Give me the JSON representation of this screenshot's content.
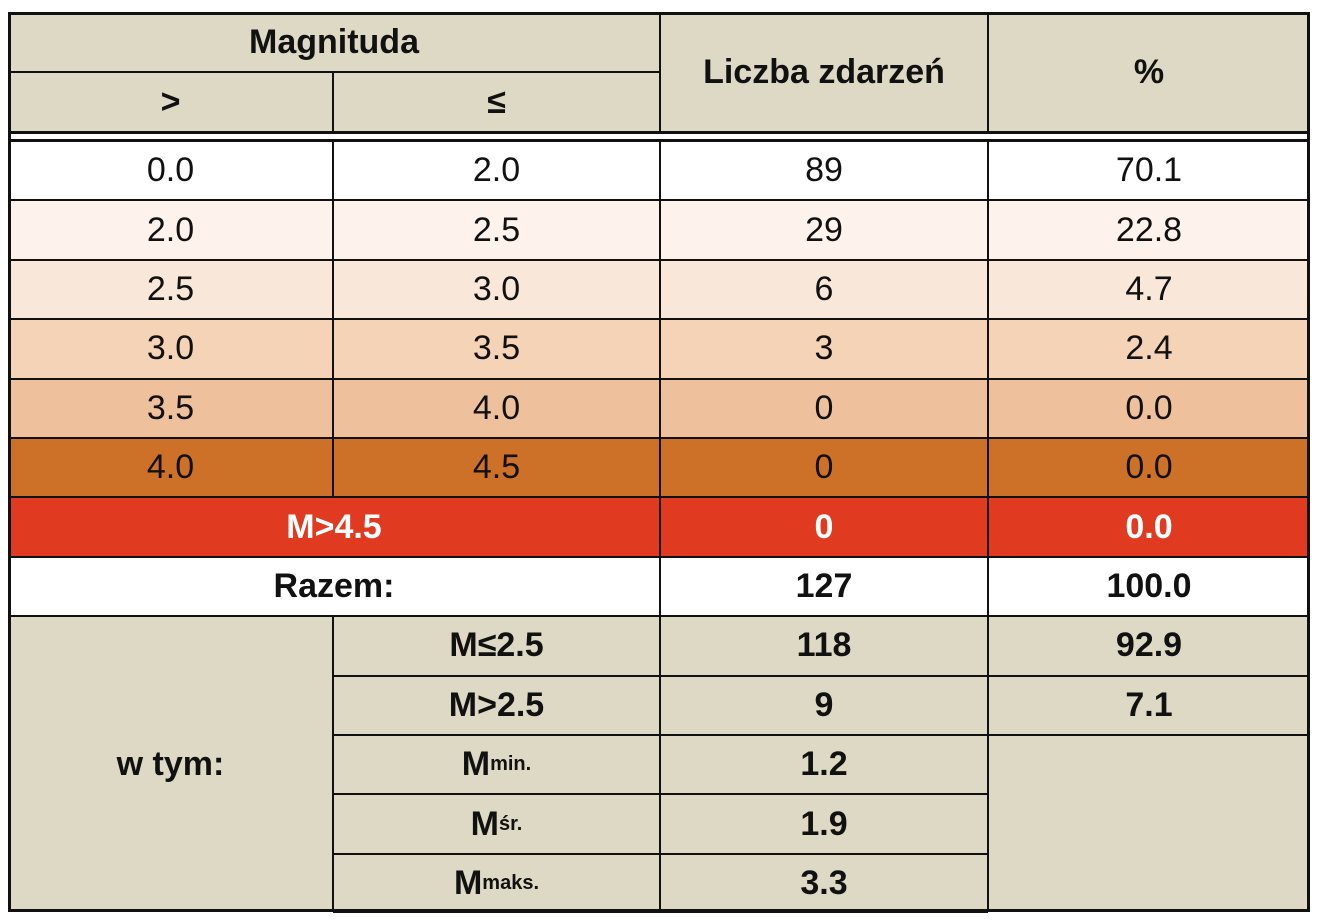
{
  "header": {
    "magnitude": "Magnituda",
    "gt": ">",
    "le": "≤",
    "count": "Liczba zdarzeń",
    "percent": "%"
  },
  "table": {
    "rows": [
      [
        "0.0",
        "2.0",
        "89",
        "70.1"
      ],
      [
        "2.0",
        "2.5",
        "29",
        "22.8"
      ],
      [
        "2.5",
        "3.0",
        "6",
        "4.7"
      ],
      [
        "3.0",
        "3.5",
        "3",
        "2.4"
      ],
      [
        "3.5",
        "4.0",
        "0",
        "0.0"
      ],
      [
        "4.0",
        "4.5",
        "0",
        "0.0"
      ]
    ]
  },
  "extreme": {
    "label": "M>4.5",
    "count": "0",
    "percent": "0.0"
  },
  "total": {
    "label": "Razem:",
    "count": "127",
    "percent": "100.0"
  },
  "summary": {
    "label": "w tym:",
    "rows": [
      {
        "label": "M≤2.5",
        "count": "118",
        "percent": "92.9"
      },
      {
        "label": "M>2.5",
        "count": "9",
        "percent": "7.1"
      },
      {
        "label": "M",
        "sub": "min.",
        "count": "1.2"
      },
      {
        "label": "M",
        "sub": "śr.",
        "count": "1.9"
      },
      {
        "label": "M",
        "sub": "maks.",
        "count": "3.3"
      }
    ]
  }
}
